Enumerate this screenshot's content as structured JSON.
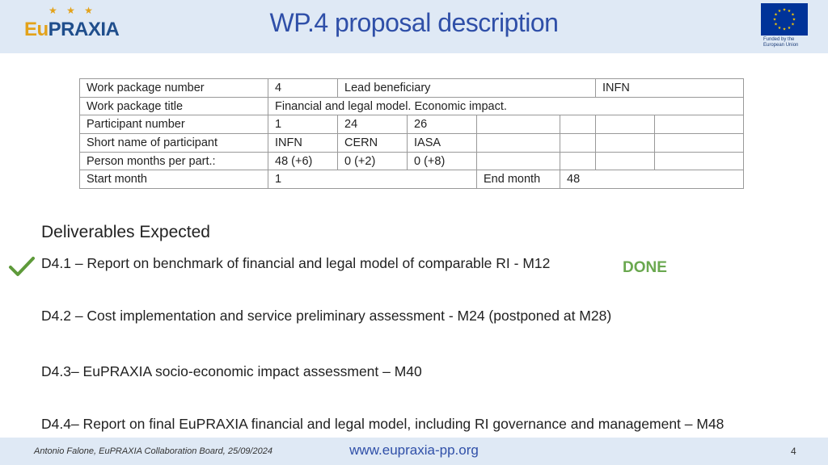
{
  "header": {
    "title": "WP.4 proposal description",
    "logo": {
      "stars": "★ ★ ★",
      "text_eu": "Eu",
      "text_rest": "PRAXIA"
    },
    "eu_funding": {
      "line1": "Funded by the",
      "line2": "European Union",
      "flag_color": "#003399",
      "star_color": "#FFCC00"
    }
  },
  "wp_table": {
    "r1": {
      "label": "Work package number",
      "number": "4",
      "lead_label": "Lead beneficiary",
      "lead_value": "INFN"
    },
    "r2": {
      "label": "Work package title",
      "value": "Financial and legal model. Economic impact."
    },
    "r3": {
      "label": "Participant number",
      "c1": "1",
      "c2": "24",
      "c3": "26"
    },
    "r4": {
      "label": "Short name of participant",
      "c1": "INFN",
      "c2": "CERN",
      "c3": "IASA"
    },
    "r5": {
      "label": "Person months per part.:",
      "c1": "48 (+6)",
      "c2": "0 (+2)",
      "c3": "0 (+8)"
    },
    "r6": {
      "label": "Start month",
      "start": "1",
      "end_label": "End month",
      "end": "48"
    }
  },
  "deliverables": {
    "heading": "Deliverables Expected",
    "items": [
      {
        "text": "D4.1 – Report on benchmark of financial and legal model of comparable RI - M12",
        "status": "DONE"
      },
      {
        "text": "D4.2 – Cost implementation and service preliminary assessment  - M24 (postponed at M28)"
      },
      {
        "text": "D4.3– EuPRAXIA socio-economic impact assessment – M40"
      },
      {
        "text": "D4.4– Report on final EuPRAXIA financial and legal model, including RI governance and management – M48"
      }
    ]
  },
  "footer": {
    "author": "Antonio Falone, EuPRAXIA Collaboration Board, 25/09/2024",
    "url": "www.eupraxia-pp.org",
    "page": "4"
  },
  "colors": {
    "header_bg": "#dfe9f5",
    "title": "#2f4fa8",
    "done": "#6aa84f",
    "check": "#5e9a3a"
  }
}
